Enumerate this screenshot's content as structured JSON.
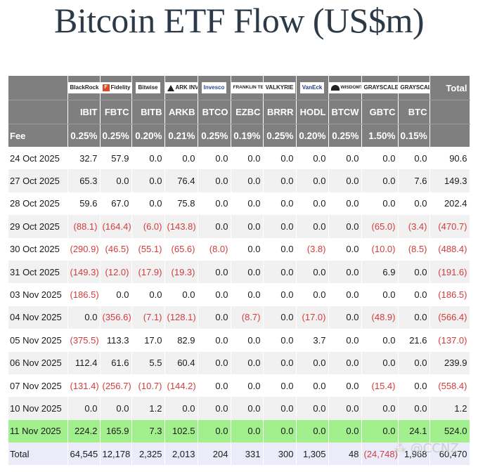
{
  "title": "Bitcoin ETF Flow (US$m)",
  "watermark": "⁂ @CCNZ",
  "issuer_logos": [
    {
      "icon": "blackrock-logo",
      "text": "BlackRock",
      "size": ""
    },
    {
      "icon": "fidelity-logo",
      "text": "Fidelity",
      "size": ""
    },
    {
      "icon": "bitwise-logo",
      "text": "Bitwise",
      "size": ""
    },
    {
      "icon": "ark-invest-logo",
      "text": "ARK INVEST",
      "size": ""
    },
    {
      "icon": "invesco-logo",
      "text": "Invesco",
      "size": ""
    },
    {
      "icon": "franklin-templeton-logo",
      "text": "FRANKLIN TEMPLETON",
      "size": "small"
    },
    {
      "icon": "valkyrie-logo",
      "text": "VALKYRIE",
      "size": ""
    },
    {
      "icon": "vaneck-logo",
      "text": "VanEck",
      "size": ""
    },
    {
      "icon": "wisdomtree-logo",
      "text": "WISDOMTREE",
      "size": "small"
    },
    {
      "icon": "grayscale-logo",
      "text": "GRAYSCALE",
      "size": ""
    },
    {
      "icon": "grayscale-logo",
      "text": "GRAYSCALE",
      "size": ""
    }
  ],
  "total_label": "Total",
  "tickers": [
    "IBIT",
    "FBTC",
    "BITB",
    "ARKB",
    "BTCO",
    "EZBC",
    "BRRR",
    "HODL",
    "BTCW",
    "GBTC",
    "BTC"
  ],
  "fee_label": "Fee",
  "fees": [
    "0.25%",
    "0.25%",
    "0.20%",
    "0.21%",
    "0.25%",
    "0.19%",
    "0.25%",
    "0.20%",
    "0.25%",
    "1.50%",
    "0.15%"
  ],
  "rows": [
    {
      "date": "24 Oct 2025",
      "values": [
        "32.7",
        "57.9",
        "0.0",
        "0.0",
        "0.0",
        "0.0",
        "0.0",
        "0.0",
        "0.0",
        "0.0",
        "0.0"
      ],
      "total": "90.6"
    },
    {
      "date": "27 Oct 2025",
      "values": [
        "65.3",
        "0.0",
        "0.0",
        "76.4",
        "0.0",
        "0.0",
        "0.0",
        "0.0",
        "0.0",
        "0.0",
        "7.6"
      ],
      "total": "149.3"
    },
    {
      "date": "28 Oct 2025",
      "values": [
        "59.6",
        "67.0",
        "0.0",
        "75.8",
        "0.0",
        "0.0",
        "0.0",
        "0.0",
        "0.0",
        "0.0",
        "0.0"
      ],
      "total": "202.4"
    },
    {
      "date": "29 Oct 2025",
      "values": [
        "(88.1)",
        "(164.4)",
        "(6.0)",
        "(143.8)",
        "0.0",
        "0.0",
        "0.0",
        "0.0",
        "0.0",
        "(65.0)",
        "(3.4)"
      ],
      "total": "(470.7)"
    },
    {
      "date": "30 Oct 2025",
      "values": [
        "(290.9)",
        "(46.5)",
        "(55.1)",
        "(65.6)",
        "(8.0)",
        "0.0",
        "0.0",
        "(3.8)",
        "0.0",
        "(10.0)",
        "(8.5)"
      ],
      "total": "(488.4)"
    },
    {
      "date": "31 Oct 2025",
      "values": [
        "(149.3)",
        "(12.0)",
        "(17.9)",
        "(19.3)",
        "0.0",
        "0.0",
        "0.0",
        "0.0",
        "0.0",
        "6.9",
        "0.0"
      ],
      "total": "(191.6)"
    },
    {
      "date": "03 Nov 2025",
      "values": [
        "(186.5)",
        "0.0",
        "0.0",
        "0.0",
        "0.0",
        "0.0",
        "0.0",
        "0.0",
        "0.0",
        "0.0",
        "0.0"
      ],
      "total": "(186.5)"
    },
    {
      "date": "04 Nov 2025",
      "values": [
        "0.0",
        "(356.6)",
        "(7.1)",
        "(128.1)",
        "0.0",
        "(8.7)",
        "0.0",
        "(17.0)",
        "0.0",
        "(48.9)",
        "0.0"
      ],
      "total": "(566.4)"
    },
    {
      "date": "05 Nov 2025",
      "values": [
        "(375.5)",
        "113.3",
        "17.0",
        "82.9",
        "0.0",
        "0.0",
        "0.0",
        "3.7",
        "0.0",
        "0.0",
        "21.6"
      ],
      "total": "(137.0)"
    },
    {
      "date": "06 Nov 2025",
      "values": [
        "112.4",
        "61.6",
        "5.5",
        "60.4",
        "0.0",
        "0.0",
        "0.0",
        "0.0",
        "0.0",
        "0.0",
        "0.0"
      ],
      "total": "239.9"
    },
    {
      "date": "07 Nov 2025",
      "values": [
        "(131.4)",
        "(256.7)",
        "(10.7)",
        "(144.2)",
        "0.0",
        "0.0",
        "0.0",
        "0.0",
        "0.0",
        "(15.4)",
        "0.0"
      ],
      "total": "(558.4)"
    },
    {
      "date": "10 Nov 2025",
      "values": [
        "0.0",
        "0.0",
        "1.2",
        "0.0",
        "0.0",
        "0.0",
        "0.0",
        "0.0",
        "0.0",
        "0.0",
        "0.0"
      ],
      "total": "1.2"
    },
    {
      "date": "11 Nov 2025",
      "values": [
        "224.2",
        "165.9",
        "7.3",
        "102.5",
        "0.0",
        "0.0",
        "0.0",
        "0.0",
        "0.0",
        "0.0",
        "24.1"
      ],
      "total": "524.0",
      "highlight": true
    }
  ],
  "total_row": {
    "label": "Total",
    "values": [
      "64,545",
      "12,178",
      "2,325",
      "2,013",
      "204",
      "331",
      "300",
      "1,305",
      "48",
      "(24,748)",
      "1,968"
    ],
    "total": "60,470"
  },
  "colors": {
    "header_bg": "#7f7f7f",
    "negative": "#d23c3c",
    "highlight": "#a1f08d",
    "total_bg": "#eaedf9"
  }
}
